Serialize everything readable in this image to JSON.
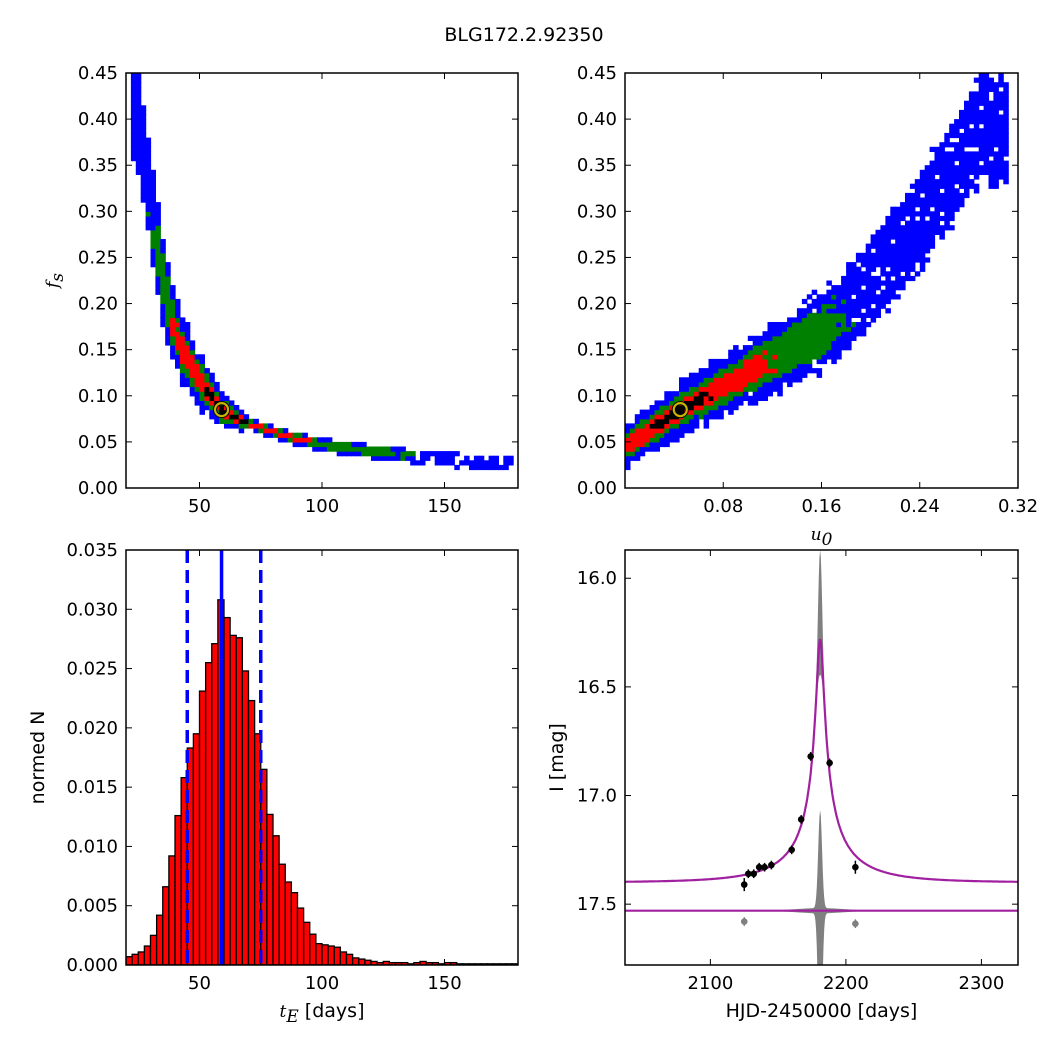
{
  "figure": {
    "title": "BLG172.2.92350"
  },
  "colors": {
    "sigma3": "#0000ff",
    "sigma2": "#008000",
    "sigma1": "#ff0000",
    "core": "#000000",
    "best_fit_marker": "#c8b400",
    "histogram_bar": "#ff0000",
    "median_line": "#0000ff",
    "model_line": "#a020a0",
    "model_envelope": "#808080",
    "data_point": "#000000"
  },
  "chart_data": [
    {
      "type": "heatmap",
      "panel": "tE_vs_fs",
      "xlabel": "",
      "ylabel": "f_s",
      "xlim": [
        20,
        180
      ],
      "ylim": [
        0,
        0.45
      ],
      "xticks": [
        "50",
        "100",
        "150"
      ],
      "yticks": [
        "0.00",
        "0.05",
        "0.10",
        "0.15",
        "0.20",
        "0.25",
        "0.30",
        "0.35",
        "0.40",
        "0.45"
      ],
      "levels": [
        "3-sigma",
        "2-sigma",
        "1-sigma",
        "core"
      ],
      "best_fit": {
        "x": 59,
        "y": 0.085
      },
      "ridge": [
        [
          23,
          0.41
        ],
        [
          26,
          0.38
        ],
        [
          30,
          0.31
        ],
        [
          34,
          0.24
        ],
        [
          38,
          0.19
        ],
        [
          43,
          0.15
        ],
        [
          50,
          0.118
        ],
        [
          59,
          0.085
        ],
        [
          70,
          0.07
        ],
        [
          85,
          0.057
        ],
        [
          100,
          0.047
        ],
        [
          120,
          0.04
        ],
        [
          140,
          0.034
        ],
        [
          160,
          0.029
        ],
        [
          177,
          0.026
        ]
      ],
      "ridge_ranges": {
        "x": [
          22,
          178
        ],
        "y": [
          0.025,
          0.41
        ]
      },
      "grid": false
    },
    {
      "type": "heatmap",
      "panel": "u0_vs_fs",
      "xlabel": "u_0",
      "ylabel": "",
      "xlim": [
        0,
        0.32
      ],
      "ylim": [
        0,
        0.45
      ],
      "xticks": [
        "0.08",
        "0.16",
        "0.24",
        "0.32"
      ],
      "yticks": [
        "0.00",
        "0.05",
        "0.10",
        "0.15",
        "0.20",
        "0.25",
        "0.30",
        "0.35",
        "0.40",
        "0.45"
      ],
      "levels": [
        "3-sigma",
        "2-sigma",
        "1-sigma",
        "core"
      ],
      "best_fit": {
        "x": 0.045,
        "y": 0.085
      },
      "ridge": [
        [
          0.0,
          0.045
        ],
        [
          0.045,
          0.085
        ],
        [
          0.1,
          0.125
        ],
        [
          0.16,
          0.17
        ],
        [
          0.2,
          0.22
        ],
        [
          0.24,
          0.29
        ],
        [
          0.29,
          0.39
        ]
      ],
      "ridge_ranges": {
        "x": [
          0.0,
          0.31
        ],
        "y": [
          0.02,
          0.41
        ]
      },
      "grid": false
    },
    {
      "type": "bar",
      "panel": "tE_histogram",
      "xlabel": "t_E [days]",
      "ylabel": "normed N",
      "xlim": [
        20,
        180
      ],
      "ylim": [
        0,
        0.035
      ],
      "xticks": [
        "50",
        "100",
        "150"
      ],
      "yticks": [
        "0.000",
        "0.005",
        "0.010",
        "0.015",
        "0.020",
        "0.025",
        "0.030",
        "0.035"
      ],
      "bin_start": 20,
      "bin_width": 2.5,
      "values": [
        0.0007,
        0.0009,
        0.0011,
        0.0016,
        0.0025,
        0.0042,
        0.0066,
        0.0092,
        0.0126,
        0.0158,
        0.0183,
        0.0195,
        0.0231,
        0.0255,
        0.0271,
        0.0308,
        0.0293,
        0.0278,
        0.0276,
        0.0248,
        0.0223,
        0.0195,
        0.0165,
        0.0127,
        0.0109,
        0.0085,
        0.007,
        0.0061,
        0.0048,
        0.0036,
        0.0026,
        0.0018,
        0.0017,
        0.0016,
        0.0015,
        0.0011,
        0.0009,
        0.0006,
        0.0005,
        0.0004,
        0.0003,
        0.0002,
        0.0003,
        0.0002,
        0.0002,
        0.0002,
        0.0001,
        0.0002,
        0.0003,
        0.0002,
        0.0002,
        0.0001,
        0.0002,
        0.0002,
        0.0001,
        0.0001,
        0.0001,
        0.0001,
        0.0001,
        0.0001,
        0.0001,
        0.0001,
        0.0001,
        0.0001
      ],
      "median": 59,
      "lower": 45,
      "upper": 75,
      "grid": false
    },
    {
      "type": "line",
      "panel": "light_curve",
      "xlabel": "HJD-2450000 [days]",
      "ylabel": "I [mag]",
      "xlim": [
        2037,
        2327
      ],
      "ylim": [
        17.78,
        15.87
      ],
      "y_inverted": true,
      "xticks": [
        "2100",
        "2200",
        "2300"
      ],
      "yticks": [
        "16.0",
        "16.5",
        "17.0",
        "17.5"
      ],
      "model": {
        "t0": 2181,
        "tE": 59,
        "u0": 0.045,
        "fs": 0.085,
        "baseline": 17.4
      },
      "envelope_peak": 15.87,
      "residual_offset": 17.53,
      "points": [
        {
          "x": 2125,
          "y": 17.41,
          "err": 0.03
        },
        {
          "x": 2128,
          "y": 17.36,
          "err": 0.02
        },
        {
          "x": 2132,
          "y": 17.36,
          "err": 0.02
        },
        {
          "x": 2136,
          "y": 17.33,
          "err": 0.02
        },
        {
          "x": 2140,
          "y": 17.33,
          "err": 0.02
        },
        {
          "x": 2145,
          "y": 17.32,
          "err": 0.02
        },
        {
          "x": 2160,
          "y": 17.25,
          "err": 0.02
        },
        {
          "x": 2167,
          "y": 17.11,
          "err": 0.02
        },
        {
          "x": 2174,
          "y": 16.82,
          "err": 0.02
        },
        {
          "x": 2188,
          "y": 16.85,
          "err": 0.02
        },
        {
          "x": 2207,
          "y": 17.33,
          "err": 0.03
        }
      ],
      "residual_points": [
        {
          "x": 2125,
          "y": 17.58,
          "err": 0.02
        },
        {
          "x": 2207,
          "y": 17.59,
          "err": 0.02
        }
      ],
      "grid": false
    }
  ]
}
